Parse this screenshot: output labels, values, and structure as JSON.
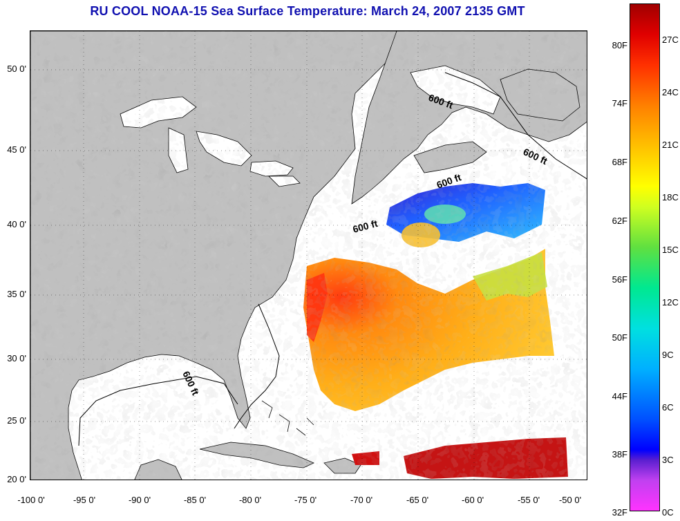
{
  "title": "RU COOL  NOAA-15  Sea Surface Temperature:  March 24, 2007 2135 GMT",
  "map": {
    "latitude_labels": [
      "50 0'",
      "45 0'",
      "40 0'",
      "35 0'",
      "30 0'",
      "25 0'",
      "20 0'"
    ],
    "longitude_labels": [
      "-100 0'",
      "-95 0'",
      "-90 0'",
      "-85 0'",
      "-80 0'",
      "-75 0'",
      "-70 0'",
      "-65 0'",
      "-60 0'",
      "-55 0'",
      "-50 0'"
    ],
    "isobath_labels": [
      "600 ft",
      "600 ft",
      "600 ft",
      "600 ft",
      "600 ft"
    ],
    "colors": {
      "land": "#c0c0c0",
      "ocean": "#ffffff",
      "title": "#1010b0"
    }
  },
  "colorbar": {
    "fahrenheit_labels": [
      "80F",
      "74F",
      "68F",
      "62F",
      "56F",
      "50F",
      "44F",
      "38F",
      "32F"
    ],
    "celsius_labels": [
      "27C",
      "24C",
      "21C",
      "18C",
      "15C",
      "12C",
      "9C",
      "6C",
      "3C",
      "0C"
    ]
  }
}
